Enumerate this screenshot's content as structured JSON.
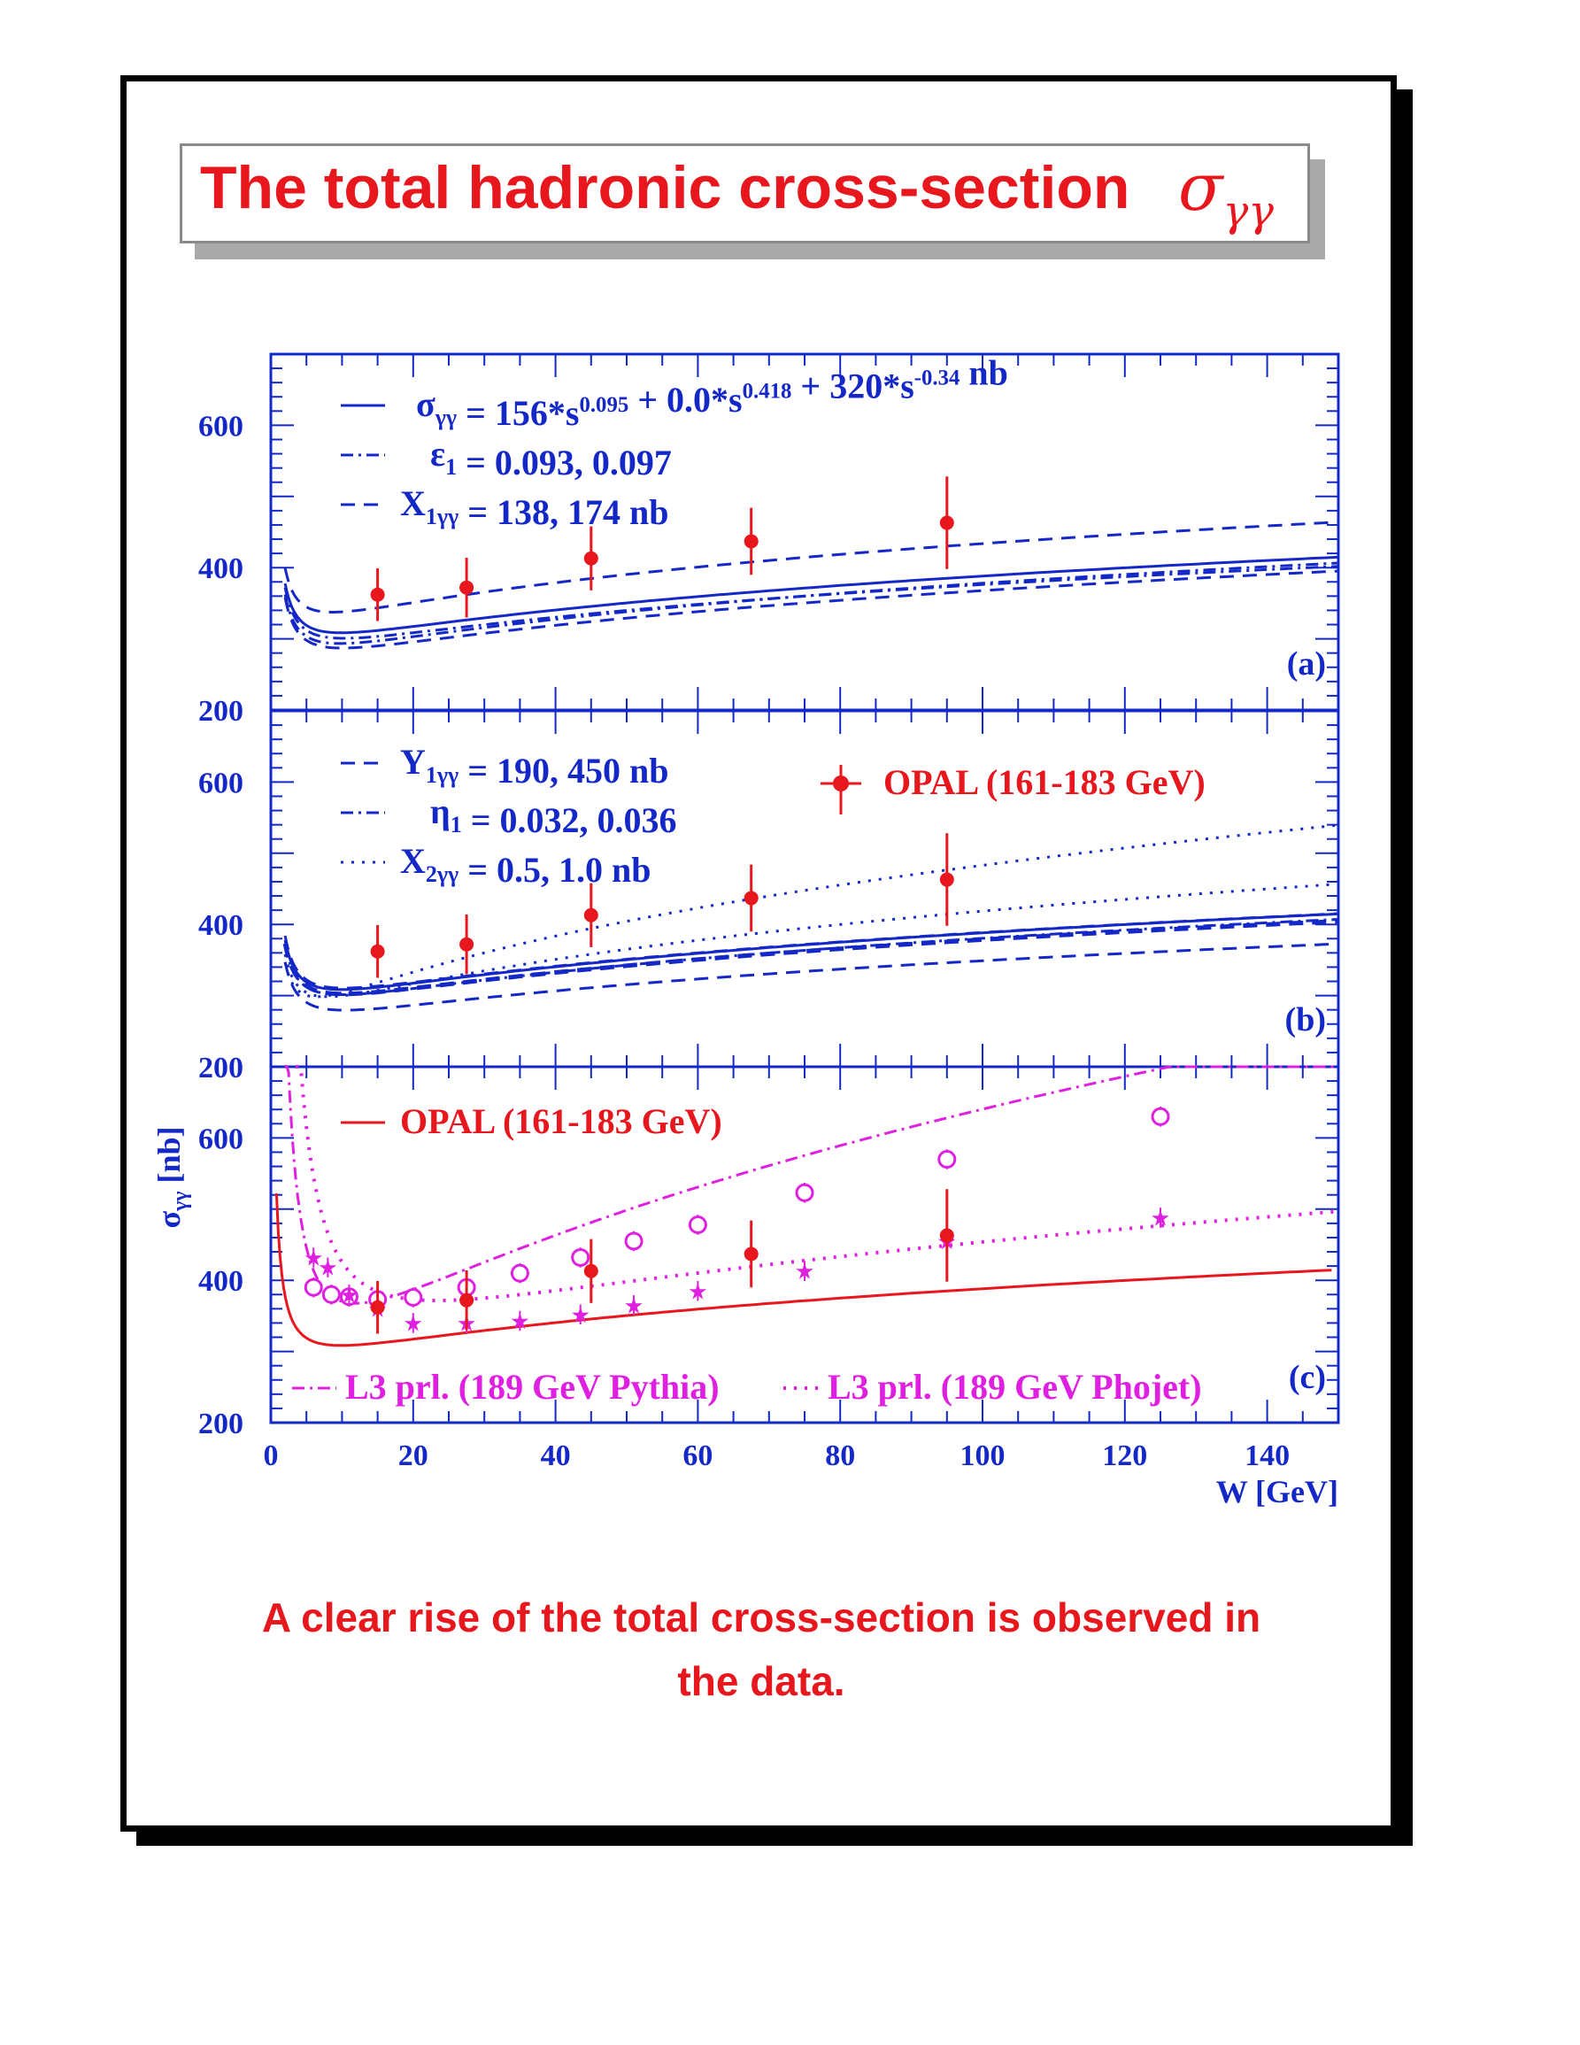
{
  "title": {
    "text": "The total hadronic cross-section",
    "symbol": "σ",
    "symbol_sub": "γγ"
  },
  "caption": {
    "line1": "A clear rise of the total cross-section is observed in",
    "line2": "the data."
  },
  "colors": {
    "red": "#e8161d",
    "blue": "#1428c8",
    "magenta": "#e020e0"
  },
  "chart_data": {
    "type": "scatter",
    "x_axis": {
      "label": "W [GeV]",
      "range": [
        0,
        150
      ],
      "ticks": [
        0,
        20,
        40,
        60,
        80,
        100,
        120,
        140
      ]
    },
    "y_axis": {
      "label": "σγγ [nb]",
      "range": [
        200,
        700
      ],
      "ticks": [
        200,
        400,
        600
      ]
    },
    "panels": [
      {
        "label": "(a)",
        "legend": [
          {
            "style": "solid",
            "text": "σγγ = 156*s^0.095 + 0.0*s^0.418 + 320*s^-0.34 nb"
          },
          {
            "style": "dashdot",
            "text": "ε1 = 0.093, 0.097"
          },
          {
            "style": "dashed",
            "text": "X1γγ = 138, 174 nb"
          }
        ],
        "data": {
          "name": "OPAL (161-183 GeV)",
          "x": [
            15,
            27.5,
            45,
            67.5,
            95
          ],
          "y": [
            362,
            372,
            413,
            437,
            463
          ],
          "yerr": [
            37,
            42,
            45,
            47,
            65
          ]
        }
      },
      {
        "label": "(b)",
        "legend": [
          {
            "style": "dashed",
            "text": "Y1γγ = 190, 450 nb"
          },
          {
            "style": "dashdot",
            "text": "η1 = 0.032, 0.036"
          },
          {
            "style": "dotted",
            "text": "X2γγ = 0.5, 1.0 nb"
          }
        ],
        "data_legend": "OPAL (161-183 GeV)",
        "data": {
          "name": "OPAL (161-183 GeV)",
          "x": [
            15,
            27.5,
            45,
            67.5,
            95
          ],
          "y": [
            362,
            372,
            413,
            437,
            463
          ],
          "yerr": [
            37,
            42,
            45,
            47,
            65
          ]
        }
      },
      {
        "label": "(c)",
        "legend": [
          {
            "style": "solid",
            "text": "OPAL (161-183 GeV)"
          },
          {
            "style": "dashdot",
            "text": "L3 prl. (189 GeV Pythia)"
          },
          {
            "style": "dotted",
            "text": "L3 prl. (189 GeV Phojet)"
          }
        ],
        "data": {
          "name": "OPAL (161-183 GeV)",
          "x": [
            15,
            27.5,
            45,
            67.5,
            95
          ],
          "y": [
            362,
            372,
            413,
            437,
            463
          ],
          "yerr": [
            37,
            42,
            45,
            47,
            65
          ]
        },
        "pythia": {
          "name": "L3 prl. (189 GeV Pythia)",
          "x": [
            6,
            8.5,
            11,
            15,
            20,
            27.5,
            35,
            43.5,
            51,
            60,
            75,
            95,
            125
          ],
          "y": [
            390,
            380,
            377,
            373,
            376,
            390,
            410,
            432,
            455,
            478,
            523,
            570,
            630
          ]
        },
        "phojet": {
          "name": "L3 prl. (189 GeV Phojet)",
          "x": [
            6,
            8,
            11,
            15,
            20,
            27.5,
            35,
            43.5,
            51,
            60,
            75,
            95,
            125
          ],
          "y": [
            432,
            418,
            380,
            360,
            340,
            340,
            343,
            352,
            365,
            385,
            413,
            455,
            488
          ]
        }
      }
    ]
  }
}
